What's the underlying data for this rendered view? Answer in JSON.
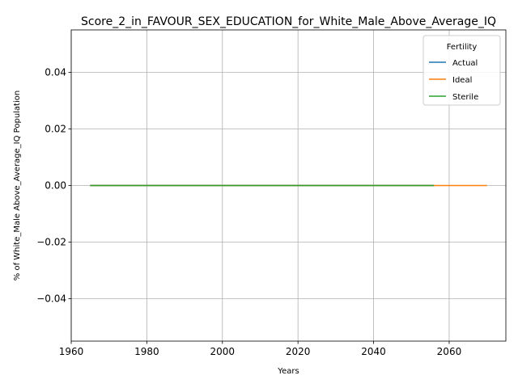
{
  "chart_data": {
    "type": "line",
    "title": "Score_2_in_FAVOUR_SEX_EDUCATION_for_White_Male_Above_Average_IQ",
    "xlabel": "Years",
    "ylabel": "% of White_Male Above_Average_IQ Population",
    "xlim": [
      1960,
      2075
    ],
    "ylim": [
      -0.055,
      0.055
    ],
    "xticks": [
      1960,
      1980,
      2000,
      2020,
      2040,
      2060
    ],
    "yticks": [
      -0.04,
      -0.02,
      0.0,
      0.02,
      0.04
    ],
    "ytick_labels": [
      "−0.04",
      "−0.02",
      "0.00",
      "0.02",
      "0.04"
    ],
    "grid": true,
    "legend": {
      "title": "Fertility",
      "placement": "top-right",
      "entries": [
        "Actual",
        "Ideal",
        "Sterile"
      ]
    },
    "series": [
      {
        "name": "Actual",
        "color": "#1f77b4",
        "x": [
          1965,
          2056
        ],
        "y": [
          0,
          0
        ]
      },
      {
        "name": "Ideal",
        "color": "#ff7f0e",
        "x": [
          1965,
          2070
        ],
        "y": [
          0,
          0
        ]
      },
      {
        "name": "Sterile",
        "color": "#2ca02c",
        "x": [
          1965,
          2056
        ],
        "y": [
          0,
          0
        ]
      }
    ]
  }
}
